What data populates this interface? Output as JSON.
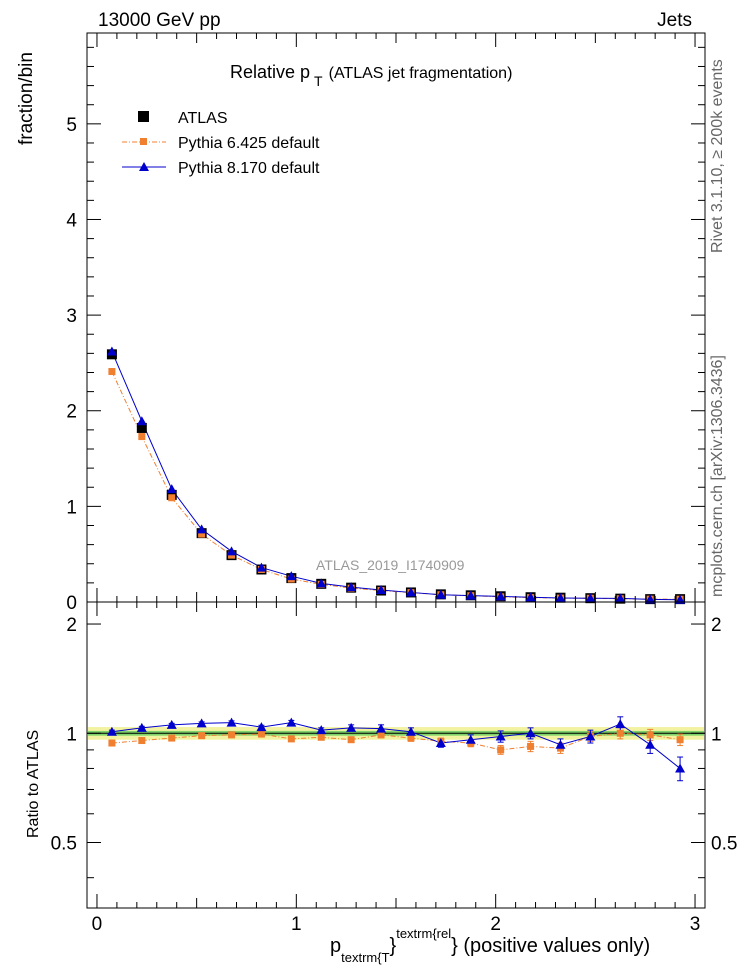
{
  "header": {
    "energy_label": "13000 GeV pp",
    "process_label": "Jets"
  },
  "side_labels": {
    "rivet": "Rivet 3.1.10, ≥ 200k events",
    "mcplots": "mcplots.cern.ch [arXiv:1306.3436]"
  },
  "colors": {
    "atlas": "#000000",
    "pythia6": "#f07f30",
    "pythia8": "#0000cc",
    "band_inner": "#7fd36a",
    "band_outer": "#f2f2a0"
  },
  "chart_data": [
    {
      "type": "scatter",
      "title_main": "Relative p",
      "title_sub": "T",
      "title_rest": "(ATLAS jet fragmentation)",
      "analysis_id": "ATLAS_2019_I1740909",
      "ylabel": "fraction/bin",
      "xlim": [
        -0.05,
        3.05
      ],
      "ylim": [
        0,
        5.95
      ],
      "yticks": [
        0,
        1,
        2,
        3,
        4,
        5
      ],
      "ytick_labels": [
        "0",
        "1",
        "2",
        "3",
        "4",
        "5"
      ],
      "legend": [
        "ATLAS",
        "Pythia 6.425 default",
        "Pythia 8.170 default"
      ],
      "x": [
        0.075,
        0.225,
        0.375,
        0.525,
        0.675,
        0.825,
        0.975,
        1.125,
        1.275,
        1.425,
        1.575,
        1.725,
        1.875,
        2.025,
        2.175,
        2.325,
        2.475,
        2.625,
        2.775,
        2.925
      ],
      "series": [
        {
          "name": "ATLAS",
          "values": [
            2.59,
            1.82,
            1.12,
            0.72,
            0.49,
            0.34,
            0.25,
            0.19,
            0.15,
            0.12,
            0.1,
            0.08,
            0.07,
            0.06,
            0.05,
            0.045,
            0.04,
            0.035,
            0.03,
            0.03
          ]
        },
        {
          "name": "Pythia 6.425 default",
          "values": [
            2.41,
            1.73,
            1.09,
            0.71,
            0.49,
            0.34,
            0.24,
            0.185,
            0.145,
            0.12,
            0.098,
            0.076,
            0.066,
            0.054,
            0.046,
            0.041,
            0.039,
            0.034,
            0.03,
            0.029
          ]
        },
        {
          "name": "Pythia 8.170 default",
          "values": [
            2.62,
            1.89,
            1.18,
            0.76,
            0.53,
            0.36,
            0.27,
            0.195,
            0.155,
            0.125,
            0.1,
            0.076,
            0.067,
            0.059,
            0.05,
            0.042,
            0.039,
            0.038,
            0.028,
            0.024
          ]
        }
      ]
    },
    {
      "type": "scatter",
      "ylabel": "Ratio to ATLAS",
      "xlabel_main": "p",
      "xlabel_sub": "textrm{T",
      "xlabel_mid": "}",
      "xlabel_sup": "textrm{rel",
      "xlabel_rest": "} (positive values only)",
      "xlim": [
        -0.05,
        3.05
      ],
      "ylim": [
        0.33,
        2.3
      ],
      "xticks": [
        0,
        1,
        2,
        3
      ],
      "xtick_labels": [
        "0",
        "1",
        "2",
        "3"
      ],
      "yticks": [
        0.5,
        1,
        2
      ],
      "ytick_labels": [
        "0.5",
        "1",
        "2"
      ],
      "reference_band": {
        "inner": [
          0.985,
          1.015
        ],
        "outer": [
          0.96,
          1.04
        ]
      },
      "x": [
        0.075,
        0.225,
        0.375,
        0.525,
        0.675,
        0.825,
        0.975,
        1.125,
        1.275,
        1.425,
        1.575,
        1.725,
        1.875,
        2.025,
        2.175,
        2.325,
        2.475,
        2.625,
        2.775,
        2.925
      ],
      "series": [
        {
          "name": "Pythia 6.425 default",
          "values": [
            0.94,
            0.955,
            0.97,
            0.985,
            0.99,
            0.995,
            0.965,
            0.975,
            0.96,
            0.99,
            0.97,
            0.95,
            0.94,
            0.9,
            0.92,
            0.91,
            0.98,
            1.0,
            0.99,
            0.96
          ],
          "errors": [
            0.01,
            0.008,
            0.008,
            0.008,
            0.008,
            0.01,
            0.01,
            0.012,
            0.015,
            0.018,
            0.02,
            0.02,
            0.022,
            0.025,
            0.03,
            0.03,
            0.03,
            0.035,
            0.035,
            0.035
          ]
        },
        {
          "name": "Pythia 8.170 default",
          "values": [
            1.01,
            1.035,
            1.055,
            1.065,
            1.07,
            1.04,
            1.07,
            1.02,
            1.035,
            1.03,
            1.01,
            0.94,
            0.96,
            0.98,
            1.0,
            0.93,
            0.98,
            1.06,
            0.93,
            0.8
          ],
          "errors": [
            0.01,
            0.01,
            0.01,
            0.01,
            0.012,
            0.012,
            0.015,
            0.015,
            0.02,
            0.025,
            0.025,
            0.025,
            0.03,
            0.035,
            0.035,
            0.035,
            0.04,
            0.05,
            0.05,
            0.06
          ]
        }
      ]
    }
  ]
}
